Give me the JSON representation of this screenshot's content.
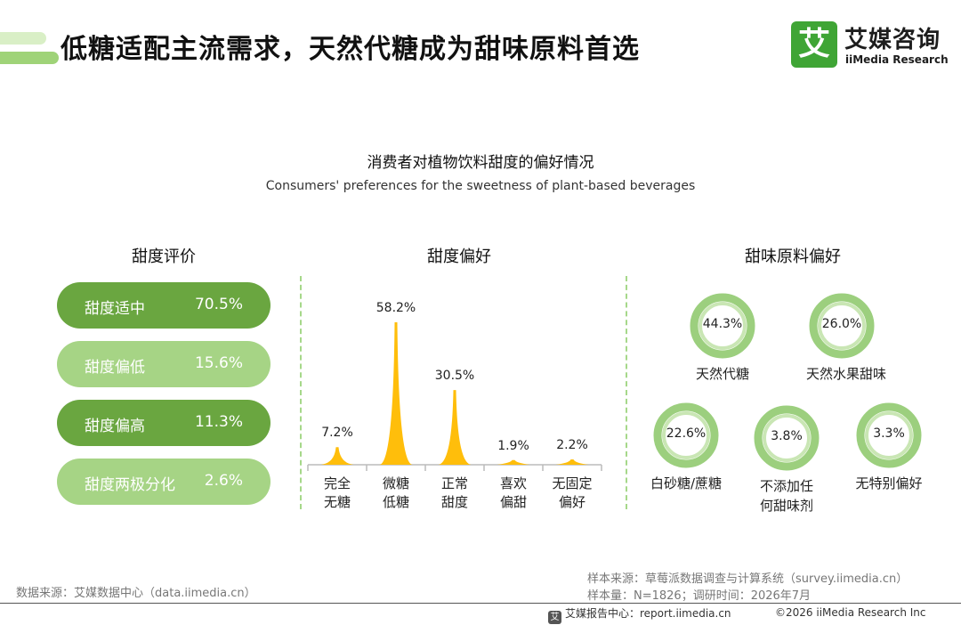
{
  "header": {
    "title": "低糖适配主流需求，天然代糖成为甜味原料首选",
    "logo_mark": "艾",
    "logo_cn": "艾媒咨询",
    "logo_en": "iiMedia Research"
  },
  "chart_title_cn": "消费者对植物饮料甜度的偏好情况",
  "chart_title_en": "Consumers' preferences for the sweetness of plant-based beverages",
  "sections": {
    "rating_title": "甜度评价",
    "preference_title": "甜度偏好",
    "ingredient_title": "甜味原料偏好"
  },
  "colors": {
    "dark_green": "#6aa640",
    "light_green": "#a6d485",
    "bar_yellow": "#ffbe0b",
    "ring_outer": "#9ccf7e",
    "ring_inner": "#c9e6b4",
    "divider": "#a6d88a"
  },
  "chart_data": [
    {
      "type": "table",
      "title": "甜度评价",
      "rows": [
        {
          "label": "甜度适中",
          "value": 70.5,
          "display": "70.5%"
        },
        {
          "label": "甜度偏低",
          "value": 15.6,
          "display": "15.6%"
        },
        {
          "label": "甜度偏高",
          "value": 11.3,
          "display": "11.3%"
        },
        {
          "label": "甜度两极分化",
          "value": 2.6,
          "display": "2.6%"
        }
      ]
    },
    {
      "type": "bar",
      "title": "甜度偏好",
      "categories": [
        [
          "完全",
          "无糖"
        ],
        [
          "微糖",
          "低糖"
        ],
        [
          "正常",
          "甜度"
        ],
        [
          "喜欢",
          "偏甜"
        ],
        [
          "无固定",
          "偏好"
        ]
      ],
      "values": [
        7.2,
        58.2,
        30.5,
        1.9,
        2.2
      ],
      "labels": [
        "7.2%",
        "58.2%",
        "30.5%",
        "1.9%",
        "2.2%"
      ],
      "ylim": [
        0,
        60
      ]
    },
    {
      "type": "pie",
      "title": "甜味原料偏好",
      "items": [
        {
          "label": "天然代糖",
          "value": 44.3,
          "display": "44.3%"
        },
        {
          "label": "天然水果甜味",
          "value": 26.0,
          "display": "26.0%"
        },
        {
          "label": "白砂糖/蔗糖",
          "value": 22.6,
          "display": "22.6%"
        },
        {
          "label": "不添加任何甜味剂",
          "line1": "不添加任",
          "line2": "何甜味剂",
          "value": 3.8,
          "display": "3.8%"
        },
        {
          "label": "无特别偏好",
          "value": 3.3,
          "display": "3.3%"
        }
      ]
    }
  ],
  "footer": {
    "source_left": "数据来源：艾媒数据中心（data.iimedia.cn）",
    "sample_source": "样本来源：草莓派数据调查与计算系统（survey.iimedia.cn）",
    "sample_size": "样本量：N=1826；调研时间：2026年7月",
    "report_icon": "艾",
    "report_center": "艾媒报告中心：report.iimedia.cn",
    "copyright": "©2026  iiMedia Research  Inc"
  }
}
